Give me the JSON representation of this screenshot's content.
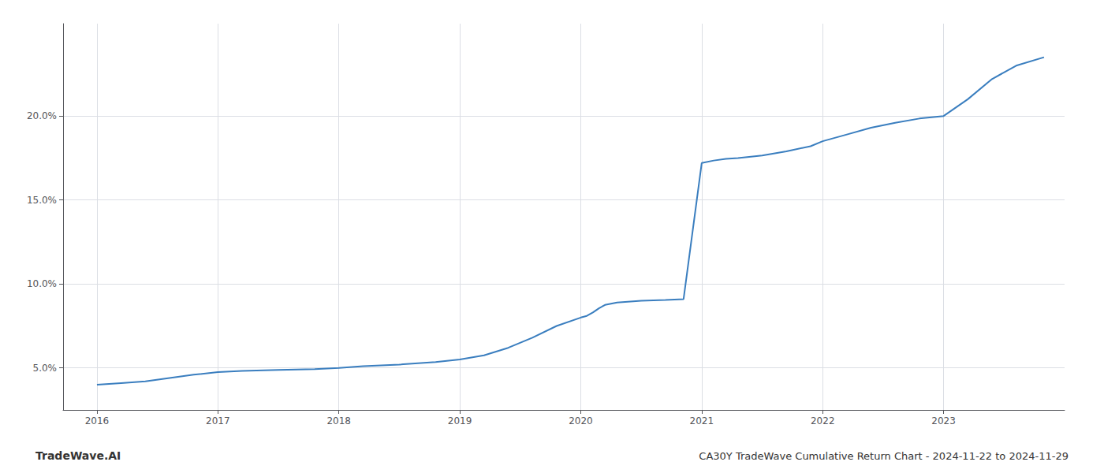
{
  "chart_data": {
    "type": "line",
    "title": "CA30Y TradeWave Cumulative Return Chart - 2024-11-22 to 2024-11-29",
    "annotations": [
      "TradeWave.AI"
    ],
    "x": [
      2016.0,
      2016.1,
      2016.2,
      2016.4,
      2016.6,
      2016.8,
      2017.0,
      2017.2,
      2017.5,
      2017.8,
      2018.0,
      2018.2,
      2018.5,
      2018.8,
      2019.0,
      2019.2,
      2019.4,
      2019.6,
      2019.8,
      2020.0,
      2020.05,
      2020.1,
      2020.15,
      2020.2,
      2020.3,
      2020.5,
      2020.7,
      2020.85,
      2021.0,
      2021.1,
      2021.2,
      2021.3,
      2021.5,
      2021.7,
      2021.9,
      2022.0,
      2022.2,
      2022.4,
      2022.6,
      2022.8,
      2023.0,
      2023.2,
      2023.4,
      2023.6,
      2023.83
    ],
    "values": [
      4.0,
      4.05,
      4.1,
      4.2,
      4.4,
      4.6,
      4.75,
      4.82,
      4.88,
      4.93,
      5.0,
      5.1,
      5.2,
      5.35,
      5.5,
      5.75,
      6.2,
      6.8,
      7.5,
      8.0,
      8.1,
      8.3,
      8.55,
      8.75,
      8.9,
      9.0,
      9.05,
      9.1,
      17.2,
      17.35,
      17.45,
      17.5,
      17.65,
      17.9,
      18.2,
      18.5,
      18.9,
      19.3,
      19.6,
      19.85,
      20.0,
      21.0,
      22.2,
      23.0,
      23.5
    ],
    "color": "#3a7ebf",
    "xlim": [
      2015.72,
      2024.0
    ],
    "ylim": [
      2.5,
      25.5
    ],
    "xticks": [
      2016,
      2017,
      2018,
      2019,
      2020,
      2021,
      2022,
      2023
    ],
    "yticks": [
      {
        "value": 5.0,
        "label": "5.0%"
      },
      {
        "value": 10.0,
        "label": "10.0%"
      },
      {
        "value": 15.0,
        "label": "15.0%"
      },
      {
        "value": 20.0,
        "label": "20.0%"
      }
    ],
    "grid": true
  }
}
